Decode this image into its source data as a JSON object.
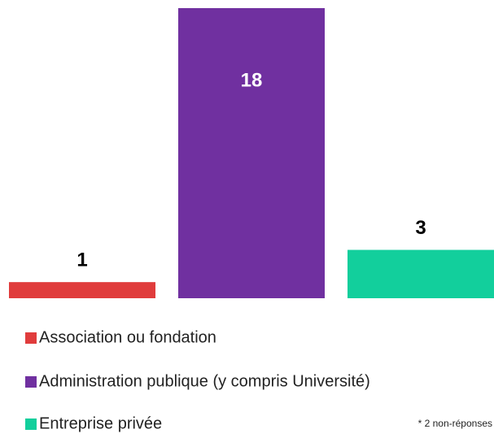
{
  "chart_data": {
    "type": "bar",
    "categories": [
      "Association ou fondation",
      "Administration publique (y compris Université)",
      "Entreprise privée"
    ],
    "values": [
      1,
      18,
      3
    ],
    "colors": [
      "#e03c3c",
      "#7030a0",
      "#12cf9c"
    ],
    "ylim": [
      0,
      18
    ],
    "annotation": "* 2 non-réponses"
  }
}
